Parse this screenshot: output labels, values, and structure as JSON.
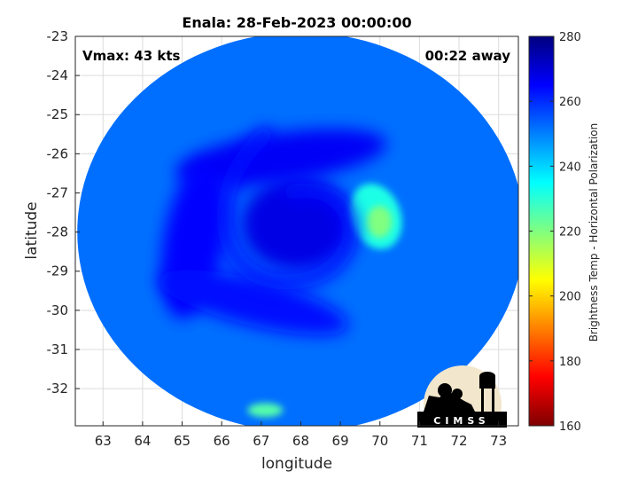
{
  "chart_data": {
    "type": "heatmap",
    "title": "Enala: 28-Feb-2023 00:00:00",
    "xlabel": "longitude",
    "ylabel": "latitude",
    "xlim": [
      62.3,
      73.5
    ],
    "ylim": [
      -32.95,
      -23
    ],
    "xticks": [
      63,
      64,
      65,
      66,
      67,
      68,
      69,
      70,
      71,
      72,
      73
    ],
    "yticks": [
      -23,
      -24,
      -25,
      -26,
      -27,
      -28,
      -29,
      -30,
      -31,
      -32
    ],
    "grid": true,
    "annotations": {
      "vmax": "Vmax: 43 kts",
      "away": "00:22 away"
    },
    "colorbar": {
      "label": "Brightness Temp - Horizontal Polarization",
      "min": 160,
      "max": 280,
      "ticks": [
        160,
        180,
        200,
        220,
        240,
        260,
        280
      ],
      "colors": [
        "#7f0000",
        "#ff0000",
        "#ff8000",
        "#ffff00",
        "#80ff80",
        "#00ffff",
        "#0080ff",
        "#0000ff",
        "#00007f"
      ]
    },
    "swath": {
      "center_lon": 68,
      "center_lat": -28,
      "radius_lon": 5.65,
      "radius_lat": 5.1,
      "background_bt": 252
    },
    "features": [
      {
        "name": "eye",
        "lon": 67.9,
        "lat": -27.8,
        "bt": 268
      },
      {
        "name": "warm-band-north",
        "lon": 67.5,
        "lat": -26.1,
        "bt": 266
      },
      {
        "name": "warm-band-west",
        "lon": 65.3,
        "lat": -28.2,
        "bt": 265
      },
      {
        "name": "warm-band-south",
        "lon": 66.8,
        "lat": -29.8,
        "bt": 264
      },
      {
        "name": "cold-cloud-east",
        "lon": 69.9,
        "lat": -27.6,
        "bt": 232
      },
      {
        "name": "cold-cloud-south",
        "lon": 67.1,
        "lat": -32.55,
        "bt": 225
      }
    ]
  },
  "logo": {
    "text": "CIMSS"
  }
}
